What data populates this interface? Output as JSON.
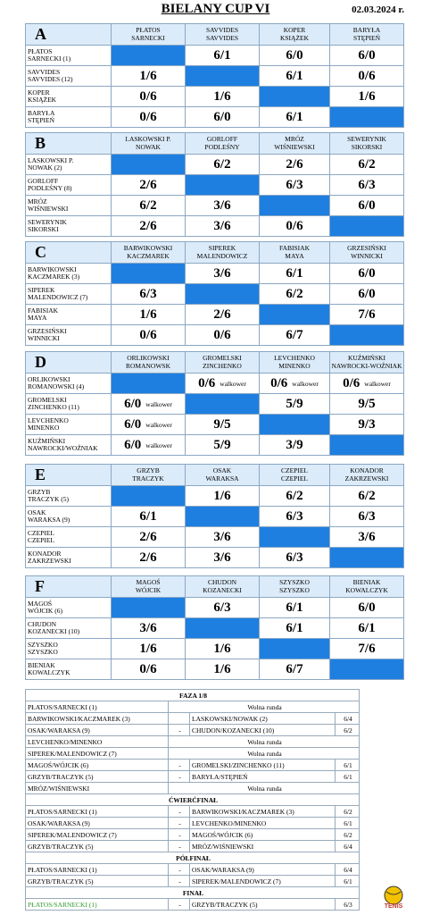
{
  "header": {
    "title": "BIELANY CUP VI",
    "date": "02.03.2024 r."
  },
  "groups": [
    {
      "name": "A",
      "columns": [
        "PŁATOS\nSARNECKI",
        "SAVVIDES\nSAVVIDES",
        "KOPER\nKSIĄŻEK",
        "BARYŁA\nSTĘPIEŃ"
      ],
      "rows": [
        {
          "label": "PŁATOS\nSARNECKI (1)",
          "scores": [
            null,
            "6/1",
            "6/0",
            "6/0"
          ]
        },
        {
          "label": "SAVVIDES\nSAVVIDES (12)",
          "scores": [
            "1/6",
            null,
            "6/1",
            "0/6"
          ]
        },
        {
          "label": "KOPER\nKSIĄŻEK",
          "scores": [
            "0/6",
            "1/6",
            null,
            "1/6"
          ]
        },
        {
          "label": "BARYŁA\nSTĘPIEŃ",
          "scores": [
            "0/6",
            "6/0",
            "6/1",
            null
          ]
        }
      ]
    },
    {
      "name": "B",
      "columns": [
        "LASKOWSKI P.\nNOWAK",
        "GORLOFF\nPODLEŚNY",
        "MRÓZ\nWIŚNIEWSKI",
        "SEWERYNIK\nSIKORSKI"
      ],
      "rows": [
        {
          "label": "LASKOWSKI P.\nNOWAK (2)",
          "scores": [
            null,
            "6/2",
            "2/6",
            "6/2"
          ]
        },
        {
          "label": "GORLOFF\nPODLEŚNY (8)",
          "scores": [
            "2/6",
            null,
            "6/3",
            "6/3"
          ]
        },
        {
          "label": "MRÓZ\nWIŚNIEWSKI",
          "scores": [
            "6/2",
            "3/6",
            null,
            "6/0"
          ]
        },
        {
          "label": "SEWERYNIK\nSIKORSKI",
          "scores": [
            "2/6",
            "3/6",
            "0/6",
            null
          ]
        }
      ]
    },
    {
      "name": "C",
      "columns": [
        "BARWIKOWSKI\nKACZMAREK",
        "SIPEREK\nMALENDOWICZ",
        "FABISIAK\nMAYA",
        "GRZESIŃSKI\nWINNICKI"
      ],
      "rows": [
        {
          "label": "BARWIKOWSKI\nKACZMAREK (3)",
          "scores": [
            null,
            "3/6",
            "6/1",
            "6/0"
          ]
        },
        {
          "label": "SIPEREK\nMALENDOWICZ (7)",
          "scores": [
            "6/3",
            null,
            "6/2",
            "6/0"
          ]
        },
        {
          "label": "FABISIAK\nMAYA",
          "scores": [
            "1/6",
            "2/6",
            null,
            "7/6"
          ]
        },
        {
          "label": "GRZESIŃSKI\nWINNICKI",
          "scores": [
            "0/6",
            "0/6",
            "6/7",
            null
          ]
        }
      ]
    },
    {
      "name": "D",
      "columns": [
        "ORLIKOWSKI\nROMANOWSK",
        "GROMELSKI\nZINCHENKO",
        "LEVCHENKO\nMINENKO",
        "KUŹMIŃSKI\nNAWROCKI-WOŹNIAK"
      ],
      "rows": [
        {
          "label": "ORLIKOWSKI\nROMANOWSKI (4)",
          "scores": [
            null,
            {
              "score": "0/6",
              "note": "walkower"
            },
            {
              "score": "0/6",
              "note": "walkower"
            },
            {
              "score": "0/6",
              "note": "walkower"
            }
          ]
        },
        {
          "label": "GROMELSKI\nZINCHENKO (11)",
          "scores": [
            {
              "score": "6/0",
              "note": "walkower"
            },
            null,
            "5/9",
            "9/5"
          ]
        },
        {
          "label": "LEVCHENKO\nMINENKO",
          "scores": [
            {
              "score": "6/0",
              "note": "walkower"
            },
            "9/5",
            null,
            "9/3"
          ]
        },
        {
          "label": "KUŹMIŃSKI\nNAWROCKI/WOŹNIAK",
          "scores": [
            {
              "score": "6/0",
              "note": "walkower"
            },
            "5/9",
            "3/9",
            null
          ]
        }
      ]
    },
    {
      "name": "E",
      "columns": [
        "GRZYB\nTRACZYK",
        "OSAK\nWARAKSA",
        "CZEPIEL\nCZEPIEL",
        "KONADOR\nZAKRZEWSKI"
      ],
      "rows": [
        {
          "label": "GRZYB\nTRACZYK (5)",
          "scores": [
            null,
            "1/6",
            "6/2",
            "6/2"
          ]
        },
        {
          "label": "OSAK\nWARAKSA (9)",
          "scores": [
            "6/1",
            null,
            "6/3",
            "6/3"
          ]
        },
        {
          "label": "CZEPIEL\nCZEPIEL",
          "scores": [
            "2/6",
            "3/6",
            null,
            "3/6"
          ]
        },
        {
          "label": "KONADOR\nZAKRZEWSKI",
          "scores": [
            "2/6",
            "3/6",
            "6/3",
            null
          ]
        }
      ]
    },
    {
      "name": "F",
      "columns": [
        "MAGOŚ\nWÓJCIK",
        "CHUDON\nKOZANECKI",
        "SZYSZKO\nSZYSZKO",
        "BIENIAK\nKOWALCZYK"
      ],
      "rows": [
        {
          "label": "MAGOŚ\nWÓJCIK (6)",
          "scores": [
            null,
            "6/3",
            "6/1",
            "6/0"
          ]
        },
        {
          "label": "CHUDON\nKOZANECKI (10)",
          "scores": [
            "3/6",
            null,
            "6/1",
            "6/1"
          ]
        },
        {
          "label": "SZYSZKO\nSZYSZKO",
          "scores": [
            "1/6",
            "1/6",
            null,
            "7/6"
          ]
        },
        {
          "label": "BIENIAK\nKOWALCZYK",
          "scores": [
            "0/6",
            "1/6",
            "6/7",
            null
          ]
        }
      ]
    }
  ],
  "bracket": [
    {
      "title": "FAZA 1/8",
      "matches": [
        {
          "left": "PŁATOS/SARNECKI (1)",
          "note": "Wolna runda"
        },
        {
          "left": "BARWIKOWSKI/KACZMAREK (3)",
          "right": "LASKOWSKI/NOWAK (2)",
          "score": "6/4"
        },
        {
          "left": "OSAK/WARAKSA (9)",
          "sep": "-",
          "right": "CHUDON/KOZANECKI (10)",
          "score": "6/2"
        },
        {
          "left": "LEVCHENKO/MINENKO",
          "note": "Wolna runda"
        },
        {
          "left": "SIPEREK/MALENDOWICZ (7)",
          "note": "Wolna runda"
        },
        {
          "left": "MAGOŚ/WÓJCIK (6)",
          "sep": "-",
          "right": "GROMELSKI/ZINCHENKO (11)",
          "score": "6/1"
        },
        {
          "left": "GRZYB/TRACZYK (5)",
          "sep": "-",
          "right": "BARYŁA/STĘPIEŃ",
          "score": "6/1"
        },
        {
          "left": "MRÓZ/WIŚNIEWSKI",
          "note": "Wolna runda"
        }
      ]
    },
    {
      "title": "ĆWIERĆFINAŁ",
      "matches": [
        {
          "left": "PŁATOS/SARNECKI (1)",
          "sep": "-",
          "right": "BARWIKOWSKI/KACZMAREK (3)",
          "score": "6/2"
        },
        {
          "left": "OSAK/WARAKSA (9)",
          "sep": "-",
          "right": "LEVCHENKO/MINENKO",
          "score": "6/1"
        },
        {
          "left": "SIPEREK/MALENDOWICZ (7)",
          "sep": "-",
          "right": "MAGOŚ/WÓJCIK (6)",
          "score": "6/2"
        },
        {
          "left": "GRZYB/TRACZYK (5)",
          "sep": "-",
          "right": "MRÓZ/WIŚNIEWSKI",
          "score": "6/4"
        }
      ]
    },
    {
      "title": "PÓŁFINAŁ",
      "matches": [
        {
          "left": "PŁATOS/SARNECKI (1)",
          "sep": "-",
          "right": "OSAK/WARAKSA (9)",
          "score": "6/4"
        },
        {
          "left": "GRZYB/TRACZYK (5)",
          "sep": "-",
          "right": "SIPEREK/MALENDOWICZ (7)",
          "score": "6/1"
        }
      ]
    },
    {
      "title": "FINAŁ",
      "matches": [
        {
          "left": "PŁATOS/SARNECKI (1)",
          "winner": true,
          "sep": "-",
          "right": "GRZYB/TRACZYK (5)",
          "score": "6/3"
        }
      ]
    }
  ],
  "logo": "TENIS"
}
